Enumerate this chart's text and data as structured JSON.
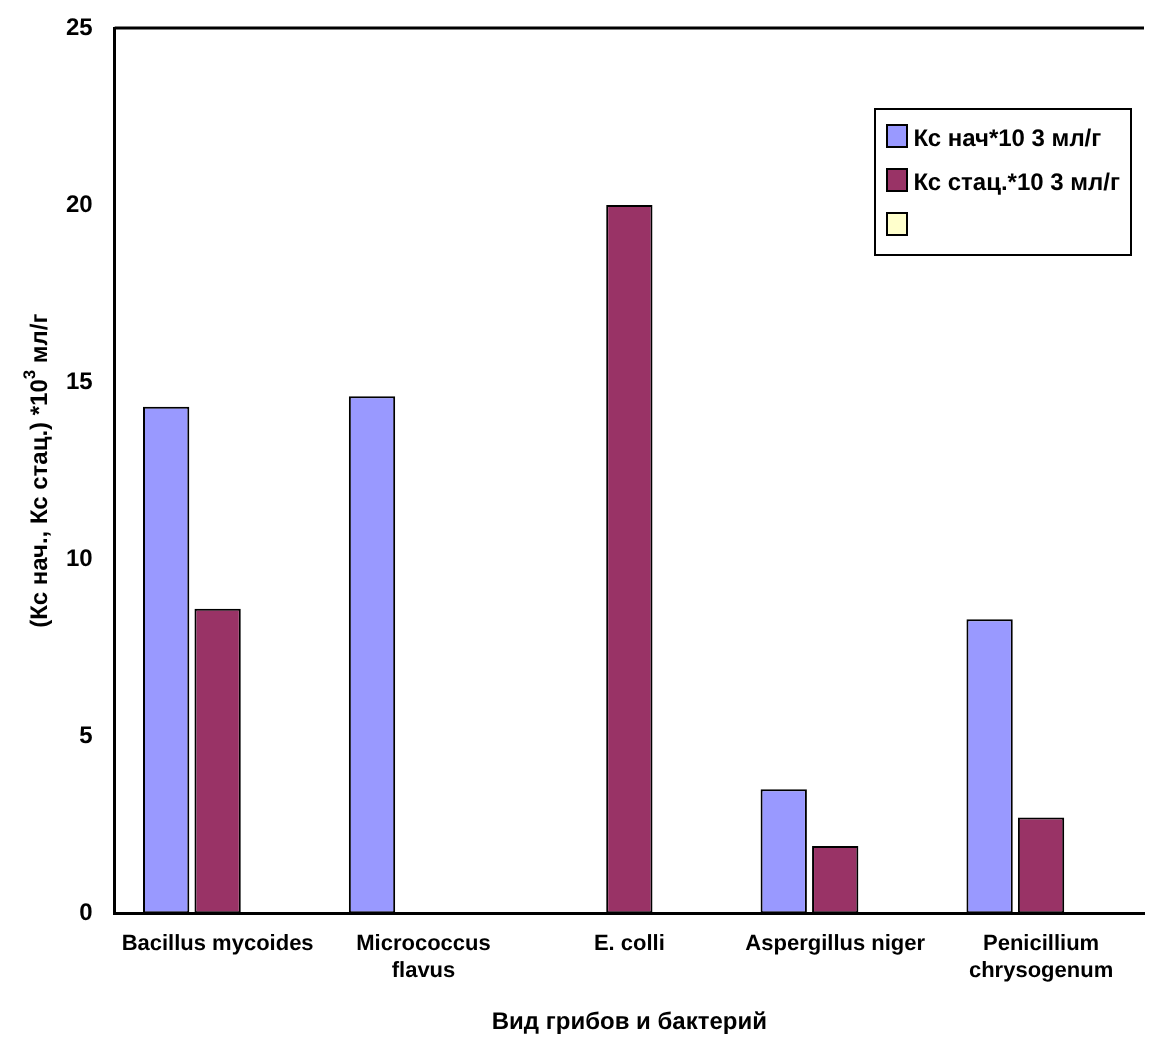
{
  "chart_data": {
    "type": "bar",
    "xlabel": "Вид грибов и бактерий",
    "ylabel": "(Кс нач., Кс стац.) *10$^{3}$ мл/г",
    "categories": [
      "Bacillus mycoides",
      "Micrococcus flavus",
      "E. colli",
      "Aspergillus niger",
      "Penicillium chrysogenum"
    ],
    "series": [
      {
        "name": "Кс нач*10 3 мл/г",
        "color": "#9999ff",
        "values": [
          14.3,
          14.6,
          null,
          3.5,
          8.3
        ]
      },
      {
        "name": "Кс стац.*10 3 мл/г",
        "color": "#993366",
        "values": [
          8.6,
          null,
          20.0,
          1.9,
          2.7
        ]
      },
      {
        "color": "#ffffcc",
        "values": [
          null,
          null,
          null,
          null,
          null
        ]
      }
    ],
    "ylim": [
      0,
      25
    ],
    "yticks": [
      0,
      5,
      10,
      15,
      20,
      25
    ],
    "grid": false,
    "legend": "top right"
  }
}
